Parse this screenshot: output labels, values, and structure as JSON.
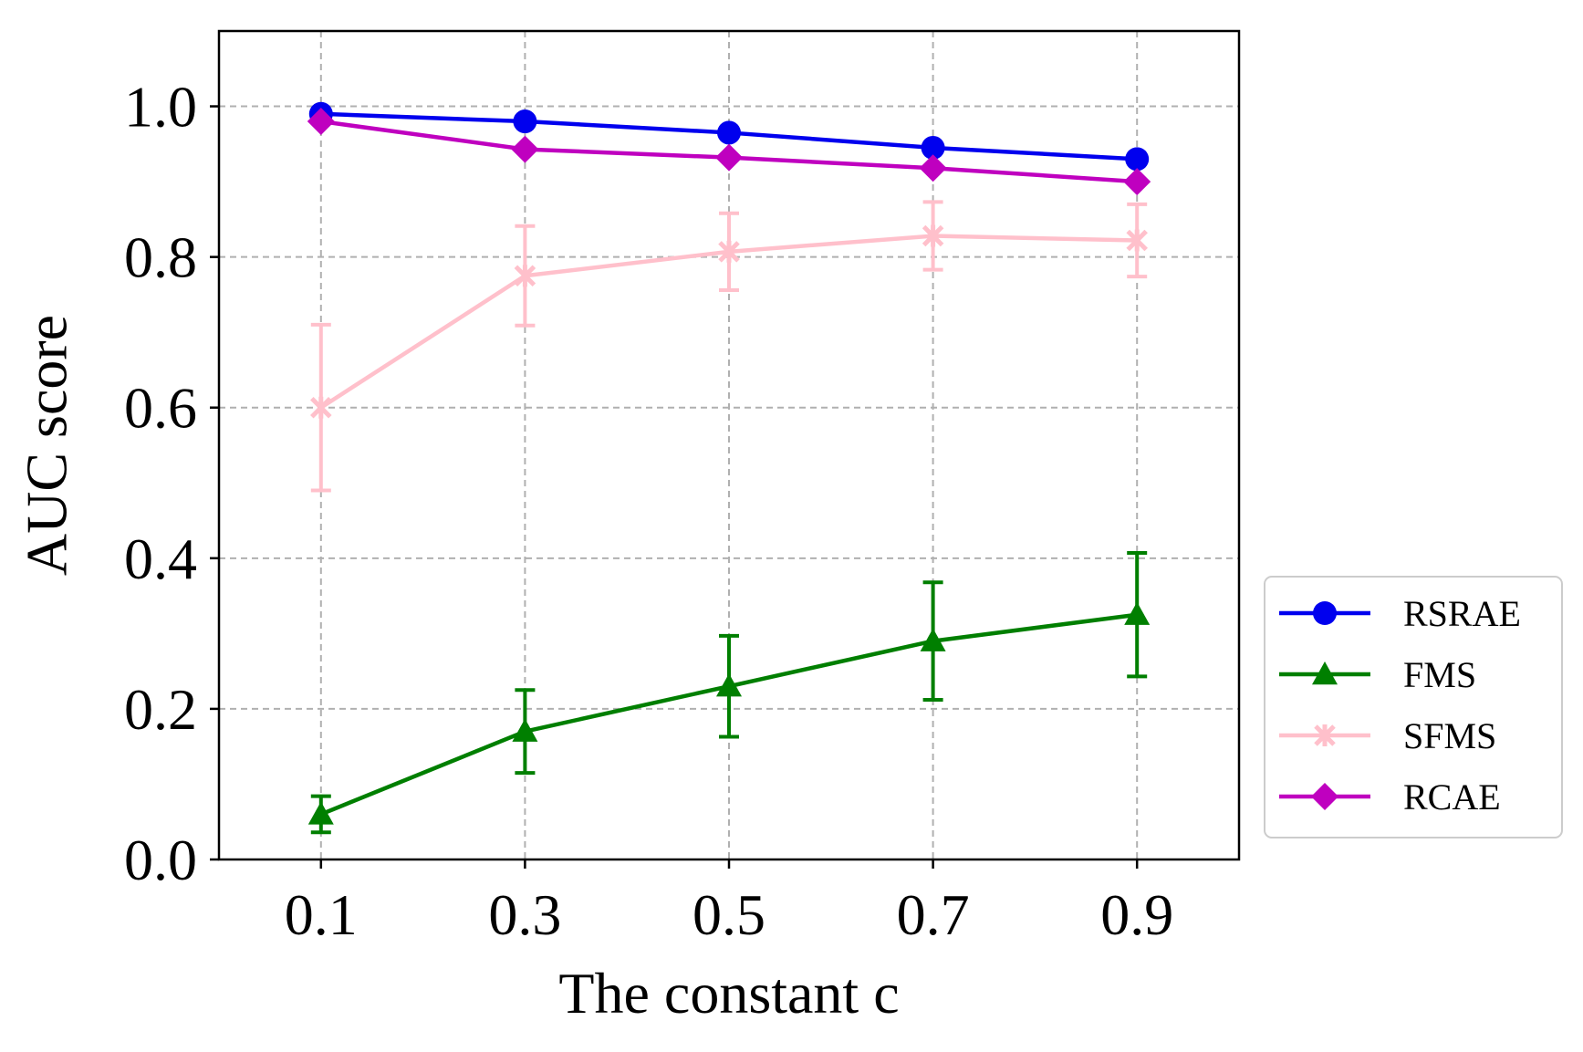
{
  "chart_data": {
    "type": "line",
    "title": "",
    "xlabel": "The constant c",
    "ylabel": "AUC score",
    "x": [
      0.1,
      0.3,
      0.5,
      0.7,
      0.9
    ],
    "x_tick_labels": [
      "0.1",
      "0.3",
      "0.5",
      "0.7",
      "0.9"
    ],
    "xlim": [
      0.0,
      1.0
    ],
    "ylim": [
      0.0,
      1.1
    ],
    "y_ticks": [
      0.0,
      0.2,
      0.4,
      0.6,
      0.8,
      1.0
    ],
    "y_tick_labels": [
      "0.0",
      "0.2",
      "0.4",
      "0.6",
      "0.8",
      "1.0"
    ],
    "grid": true,
    "legend_position": "outside-right",
    "series": [
      {
        "name": "RSRAE",
        "color": "#0000ee",
        "marker": "circle",
        "values": [
          0.99,
          0.98,
          0.965,
          0.945,
          0.93
        ],
        "errors": null
      },
      {
        "name": "FMS",
        "color": "#007f00",
        "marker": "triangle",
        "values": [
          0.06,
          0.17,
          0.23,
          0.29,
          0.325
        ],
        "errors": [
          0.024,
          0.055,
          0.067,
          0.078,
          0.082
        ]
      },
      {
        "name": "SFMS",
        "color": "#ffc0cb",
        "marker": "x",
        "values": [
          0.6,
          0.775,
          0.807,
          0.828,
          0.822
        ],
        "errors": [
          0.11,
          0.066,
          0.051,
          0.045,
          0.048
        ]
      },
      {
        "name": "RCAE",
        "color": "#bf00bf",
        "marker": "diamond",
        "values": [
          0.98,
          0.943,
          0.932,
          0.918,
          0.9
        ],
        "errors": null
      }
    ]
  }
}
